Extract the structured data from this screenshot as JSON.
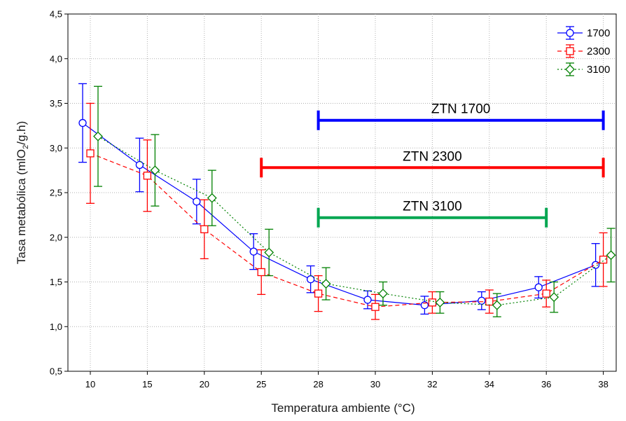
{
  "chart_data": {
    "type": "line",
    "xlabel": "Temperatura ambiente (°C)",
    "ylabel_parts": [
      "Tasa metabólica (mlO",
      "2",
      "/g.h)"
    ],
    "categories": [
      "10",
      "15",
      "20",
      "25",
      "28",
      "30",
      "32",
      "34",
      "36",
      "38"
    ],
    "ylim": [
      0.5,
      4.5
    ],
    "yticks": [
      "0,5",
      "1,0",
      "1,5",
      "2,0",
      "2,5",
      "3,0",
      "3,5",
      "4,0",
      "4,5"
    ],
    "grid": true,
    "legend_position": "top-right",
    "series": [
      {
        "name": "1700",
        "color": "#0000ff",
        "line_style": "solid",
        "marker": "circle",
        "offset": -0.27,
        "values": [
          3.28,
          2.81,
          2.4,
          1.84,
          1.53,
          1.3,
          1.24,
          1.29,
          1.44,
          1.69
        ],
        "errors": [
          0.44,
          0.3,
          0.25,
          0.2,
          0.15,
          0.1,
          0.1,
          0.1,
          0.12,
          0.24
        ]
      },
      {
        "name": "2300",
        "color": "#ff0000",
        "line_style": "dashed",
        "marker": "square",
        "offset": 0.0,
        "values": [
          2.94,
          2.69,
          2.09,
          1.61,
          1.37,
          1.22,
          1.27,
          1.28,
          1.37,
          1.75
        ],
        "errors": [
          0.56,
          0.4,
          0.33,
          0.25,
          0.2,
          0.14,
          0.12,
          0.13,
          0.15,
          0.3
        ]
      },
      {
        "name": "3100",
        "color": "#008000",
        "line_style": "dotted",
        "marker": "diamond",
        "offset": 0.27,
        "values": [
          3.13,
          2.75,
          2.44,
          1.83,
          1.48,
          1.37,
          1.27,
          1.24,
          1.33,
          1.8
        ],
        "errors": [
          0.56,
          0.4,
          0.31,
          0.26,
          0.18,
          0.13,
          0.12,
          0.13,
          0.17,
          0.3
        ]
      }
    ],
    "ranges": [
      {
        "label": "ZTN 1700",
        "color": "#0000ff",
        "from": "28",
        "to": "38",
        "y": 3.31
      },
      {
        "label": "ZTN 2300",
        "color": "#ff0000",
        "from": "25",
        "to": "38",
        "y": 2.78
      },
      {
        "label": "ZTN 3100",
        "color": "#00a651",
        "from": "28",
        "to": "36",
        "y": 2.22
      }
    ]
  }
}
